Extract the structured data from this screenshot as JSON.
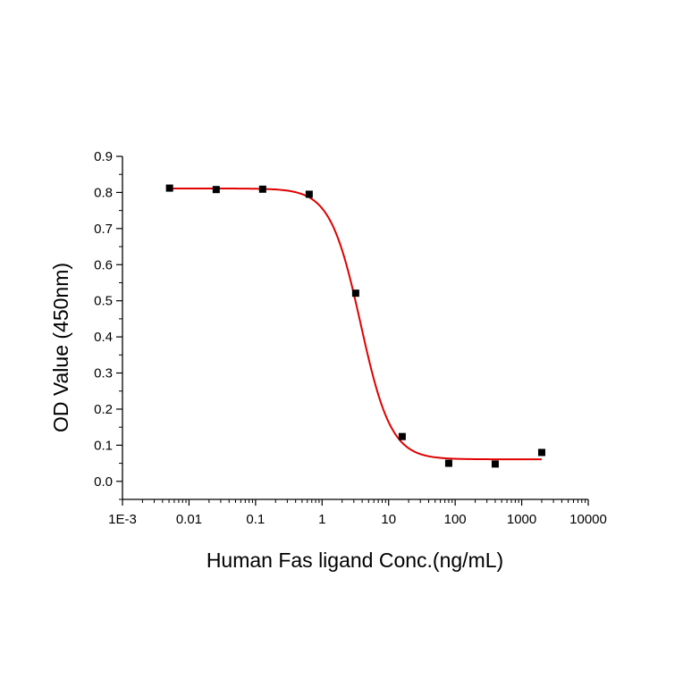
{
  "chart_data": {
    "type": "scatter",
    "title": "",
    "xlabel": "Human Fas ligand Conc.(ng/mL)",
    "ylabel": "OD Value (450nm)",
    "x_scale": "log",
    "xlim": [
      0.001,
      10000
    ],
    "ylim": [
      -0.05,
      0.9
    ],
    "x_ticks": [
      {
        "value": 0.001,
        "label": "1E-3"
      },
      {
        "value": 0.01,
        "label": "0.01"
      },
      {
        "value": 0.1,
        "label": "0.1"
      },
      {
        "value": 1,
        "label": "1"
      },
      {
        "value": 10,
        "label": "10"
      },
      {
        "value": 100,
        "label": "100"
      },
      {
        "value": 1000,
        "label": "1000"
      },
      {
        "value": 10000,
        "label": "10000"
      }
    ],
    "y_ticks": [
      {
        "value": 0.0,
        "label": "0.0"
      },
      {
        "value": 0.1,
        "label": "0.1"
      },
      {
        "value": 0.2,
        "label": "0.2"
      },
      {
        "value": 0.3,
        "label": "0.3"
      },
      {
        "value": 0.4,
        "label": "0.4"
      },
      {
        "value": 0.5,
        "label": "0.5"
      },
      {
        "value": 0.6,
        "label": "0.6"
      },
      {
        "value": 0.7,
        "label": "0.7"
      },
      {
        "value": 0.8,
        "label": "0.8"
      },
      {
        "value": 0.9,
        "label": "0.9"
      }
    ],
    "grid": false,
    "legend": "none",
    "series": [
      {
        "points": [
          {
            "x": 0.0051,
            "y": 0.812
          },
          {
            "x": 0.0256,
            "y": 0.808
          },
          {
            "x": 0.128,
            "y": 0.809
          },
          {
            "x": 0.64,
            "y": 0.795
          },
          {
            "x": 3.2,
            "y": 0.521
          },
          {
            "x": 16,
            "y": 0.124
          },
          {
            "x": 80,
            "y": 0.05
          },
          {
            "x": 400,
            "y": 0.048
          },
          {
            "x": 2000,
            "y": 0.08
          }
        ],
        "marker": "square",
        "color": "#000000"
      }
    ],
    "fit": {
      "model": "four-parameter logistic",
      "top": 0.811,
      "bottom": 0.061,
      "ec50": 3.8,
      "hill": 1.9,
      "color": "#e00000"
    }
  }
}
